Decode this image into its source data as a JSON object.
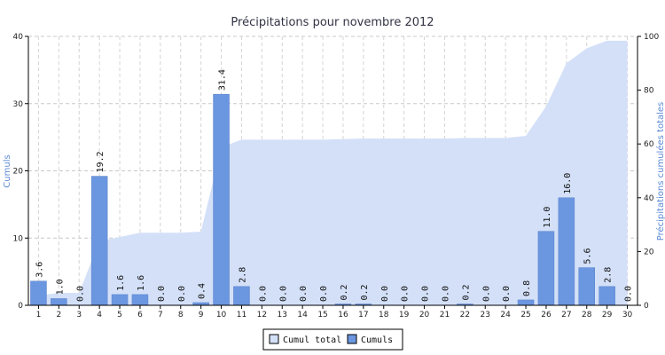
{
  "chart_data": {
    "type": "bar",
    "title": "Précipitations pour novembre 2012",
    "categories": [
      "1",
      "2",
      "3",
      "4",
      "5",
      "6",
      "7",
      "8",
      "9",
      "10",
      "11",
      "12",
      "13",
      "14",
      "15",
      "16",
      "17",
      "18",
      "19",
      "20",
      "21",
      "22",
      "23",
      "24",
      "25",
      "26",
      "27",
      "28",
      "29",
      "30"
    ],
    "series": [
      {
        "name": "Cumuls",
        "type": "bar",
        "axis": "left",
        "color": "#6b96e0",
        "values": [
          3.6,
          1.0,
          0.0,
          19.2,
          1.6,
          1.6,
          0.0,
          0.0,
          0.4,
          31.4,
          2.8,
          0.0,
          0.0,
          0.0,
          0.0,
          0.2,
          0.2,
          0.0,
          0.0,
          0.0,
          0.0,
          0.2,
          0.0,
          0.0,
          0.8,
          11.0,
          16.0,
          5.6,
          2.8,
          0.0
        ],
        "labels": [
          "3.6",
          "1.0",
          "0.0",
          "19.2",
          "1.6",
          "1.6",
          "0.0",
          "0.0",
          "0.4",
          "31.4",
          "2.8",
          "0.0",
          "0.0",
          "0.0",
          "0.0",
          "0.2",
          "0.2",
          "0.0",
          "0.0",
          "0.0",
          "0.0",
          "0.2",
          "0.0",
          "0.0",
          "0.8",
          "11.0",
          "16.0",
          "5.6",
          "2.8",
          "0.0"
        ]
      },
      {
        "name": "Cumul total",
        "type": "area",
        "axis": "right",
        "color": "#d3e0f8",
        "values": [
          3.6,
          4.6,
          4.6,
          23.8,
          25.4,
          27.0,
          27.0,
          27.0,
          27.4,
          58.8,
          61.6,
          61.6,
          61.6,
          61.6,
          61.6,
          61.8,
          62.0,
          62.0,
          62.0,
          62.0,
          62.0,
          62.2,
          62.2,
          62.2,
          63.0,
          74.0,
          90.0,
          95.6,
          98.4,
          98.4
        ]
      }
    ],
    "ylabel_left": "Cumuls",
    "ylabel_right": "Précipitations cumulées totales",
    "ylim_left": [
      0,
      40
    ],
    "yticks_left": [
      "0",
      "10",
      "20",
      "30",
      "40"
    ],
    "ylim_right": [
      0,
      100
    ],
    "yticks_right": [
      "0",
      "20",
      "40",
      "60",
      "80",
      "100"
    ],
    "grid": true,
    "legend_position": "bottom-center",
    "legend": [
      "Cumul total",
      "Cumuls"
    ]
  }
}
